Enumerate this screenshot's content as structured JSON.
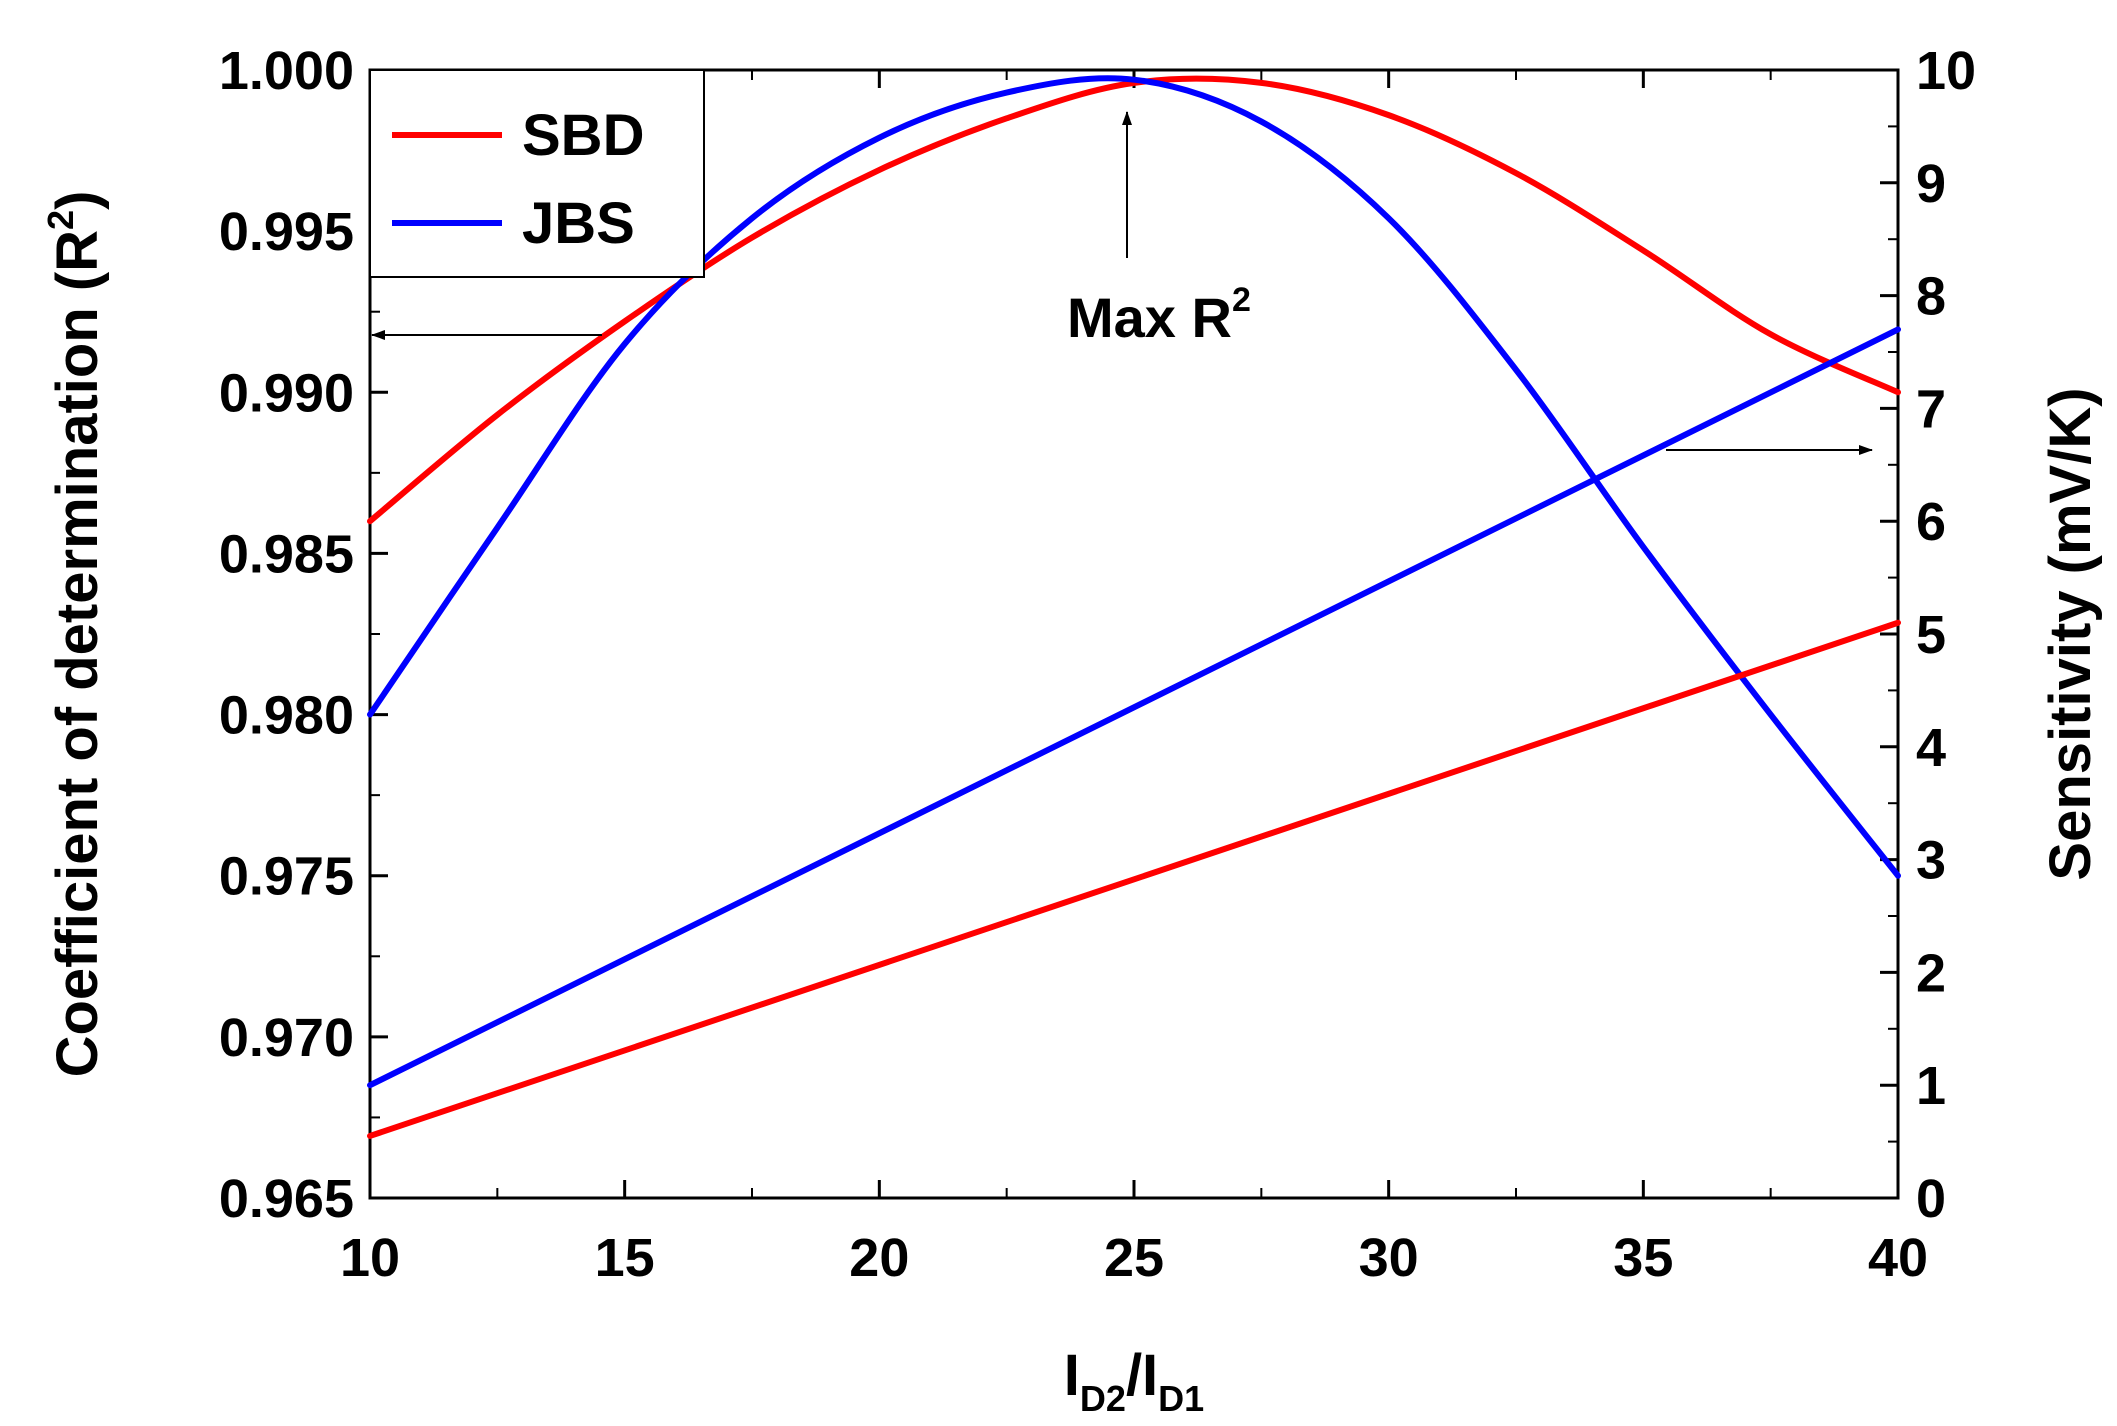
{
  "chart_data": {
    "type": "line",
    "xlabel": {
      "main": "I",
      "sub1": "D2",
      "mid": "/I",
      "sub2": "D1"
    },
    "ylabel_left": {
      "main": "Coefficient of determination (R",
      "sup": "2",
      "end": ")"
    },
    "ylabel_right": "Sensitivity (mV/K)",
    "xlim": [
      10,
      40
    ],
    "ylim_left": [
      0.965,
      1.0
    ],
    "ylim_right": [
      0,
      10
    ],
    "x_ticks": [
      "10",
      "15",
      "20",
      "25",
      "30",
      "35",
      "40"
    ],
    "y_left_ticks": [
      "0.965",
      "0.970",
      "0.975",
      "0.980",
      "0.985",
      "0.990",
      "0.995",
      "1.000"
    ],
    "y_right_ticks": [
      "0",
      "1",
      "2",
      "3",
      "4",
      "5",
      "6",
      "7",
      "8",
      "9",
      "10"
    ],
    "legend": [
      {
        "name": "SBD",
        "color": "#ff0000"
      },
      {
        "name": "JBS",
        "color": "#0000ff"
      }
    ],
    "series": [
      {
        "name": "SBD",
        "axis": "left",
        "color": "#ff0000",
        "x": [
          10,
          12.5,
          15,
          17.5,
          20,
          22.5,
          25,
          27.5,
          30,
          32.5,
          35,
          37.5,
          40
        ],
        "values": [
          0.986,
          0.9893,
          0.9922,
          0.9948,
          0.9969,
          0.9985,
          0.9996,
          0.9996,
          0.9986,
          0.9968,
          0.9944,
          0.9918,
          0.99
        ]
      },
      {
        "name": "JBS",
        "axis": "left",
        "color": "#0000ff",
        "x": [
          10,
          12.5,
          15,
          17.5,
          20,
          22.5,
          25,
          27.5,
          30,
          32.5,
          35,
          37.5,
          40
        ],
        "values": [
          0.98,
          0.9858,
          0.9915,
          0.9954,
          0.9979,
          0.9993,
          0.9997,
          0.9984,
          0.9954,
          0.9907,
          0.9852,
          0.98,
          0.975
        ]
      },
      {
        "name": "SBD",
        "axis": "right",
        "color": "#ff0000",
        "x": [
          10,
          40
        ],
        "values": [
          0.55,
          5.1
        ]
      },
      {
        "name": "JBS",
        "axis": "right",
        "color": "#0000ff",
        "x": [
          10,
          40
        ],
        "values": [
          1.0,
          7.7
        ]
      }
    ],
    "annotations": {
      "max_label": "Max R",
      "max_label_sup": "2",
      "max_x": 25
    }
  }
}
